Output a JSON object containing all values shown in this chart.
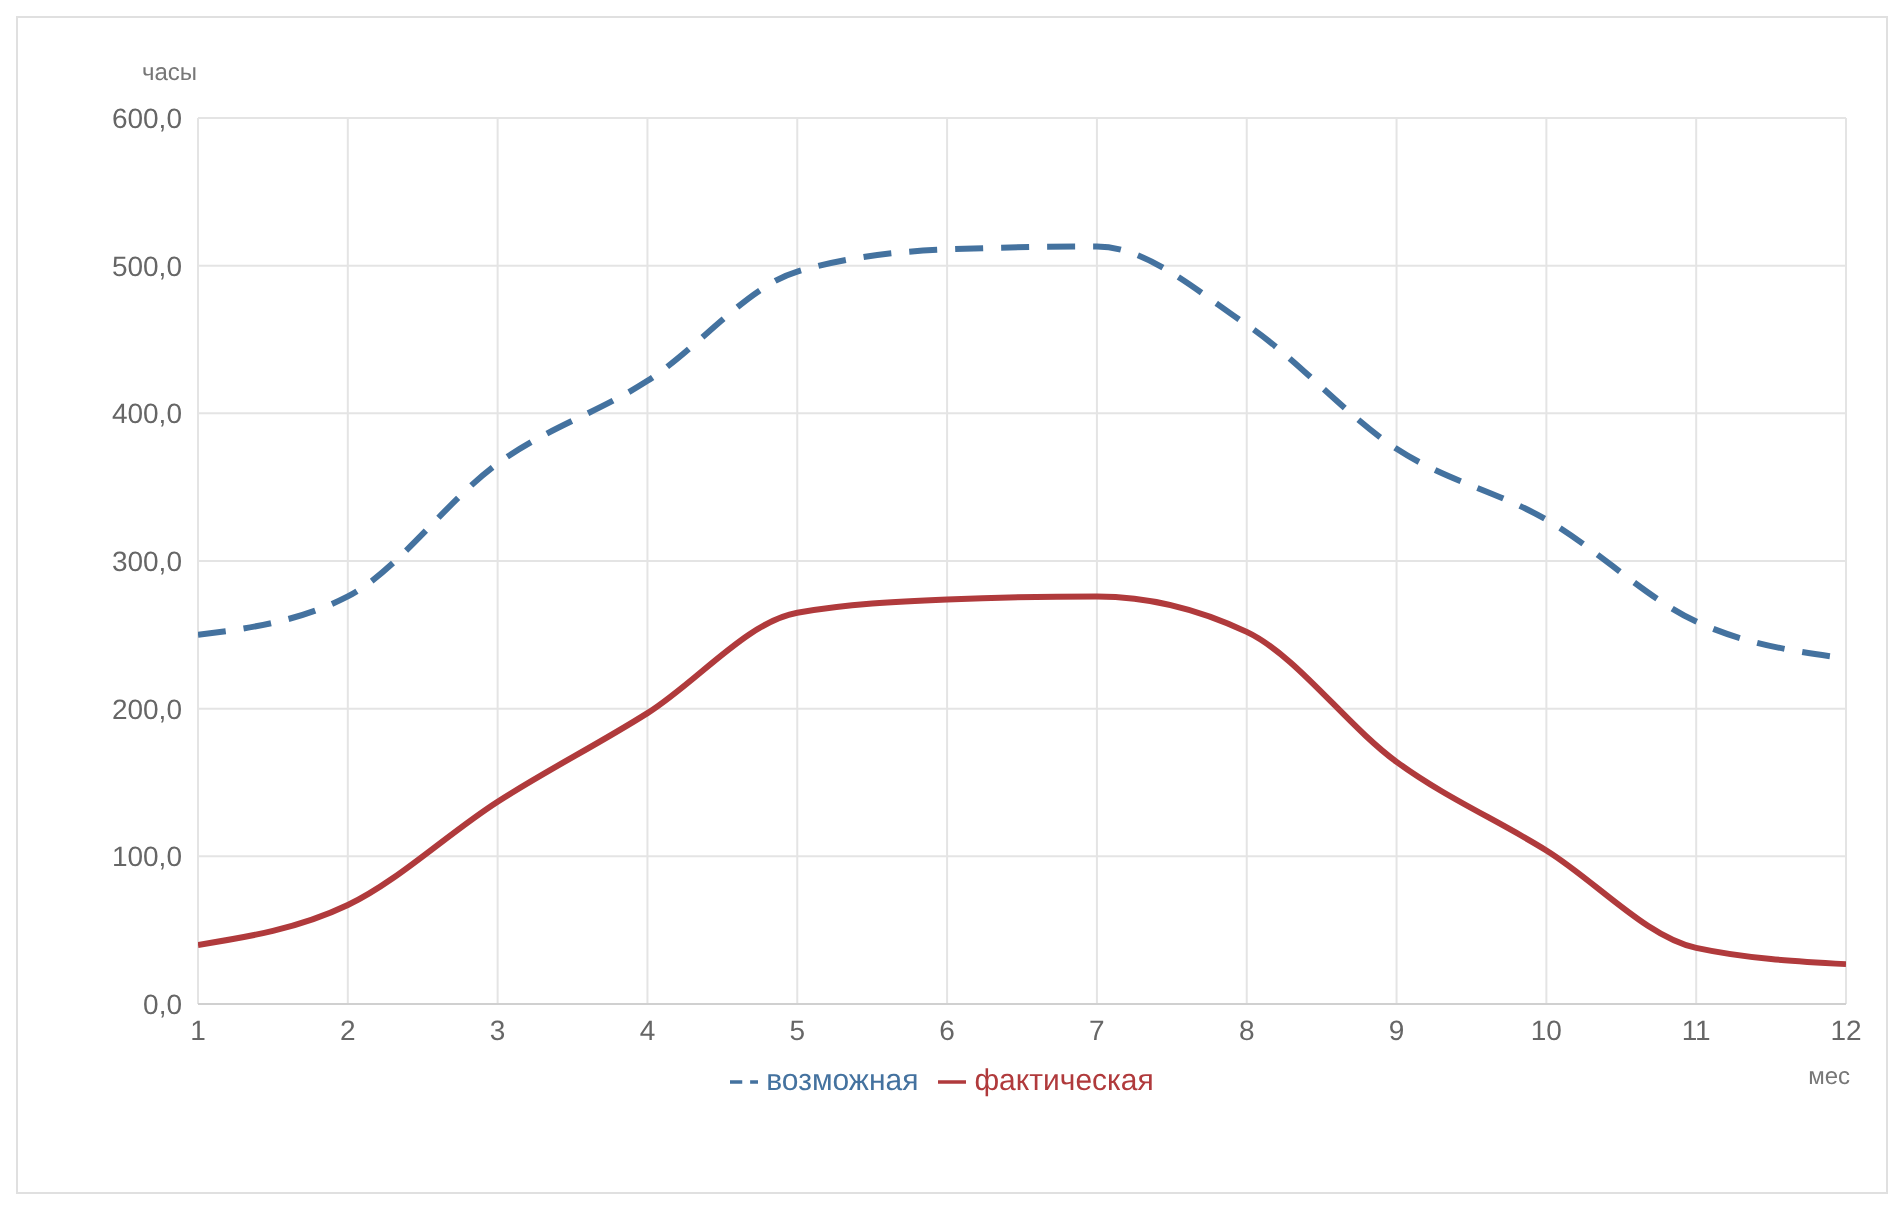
{
  "chart_data": {
    "type": "line",
    "ylabel": "часы",
    "xlabel": "мес",
    "x": [
      1,
      2,
      3,
      4,
      5,
      6,
      7,
      8,
      9,
      10,
      11,
      12
    ],
    "series": [
      {
        "name": "возможная",
        "color": "#44729f",
        "line_style": "dashed",
        "values": [
          250,
          276,
          366,
          422,
          496,
          511,
          513,
          460,
          376,
          328,
          259,
          234
        ]
      },
      {
        "name": "фактическая",
        "color": "#b03a3c",
        "line_style": "solid",
        "values": [
          40,
          67,
          137,
          197,
          265,
          274,
          276,
          252,
          164,
          104,
          38,
          27
        ]
      }
    ],
    "xlim": [
      1,
      12
    ],
    "xticks": [
      1,
      2,
      3,
      4,
      5,
      6,
      7,
      8,
      9,
      10,
      11,
      12
    ],
    "ylim": [
      0,
      600
    ],
    "yticks": [
      {
        "value": 0,
        "label": "0,0"
      },
      {
        "value": 100,
        "label": "100,0"
      },
      {
        "value": 200,
        "label": "200,0"
      },
      {
        "value": 300,
        "label": "300,0"
      },
      {
        "value": 400,
        "label": "400,0"
      },
      {
        "value": 500,
        "label": "500,0"
      },
      {
        "value": 600,
        "label": "600,0"
      }
    ],
    "grid": true,
    "legend": "bottom",
    "marker": "none"
  }
}
